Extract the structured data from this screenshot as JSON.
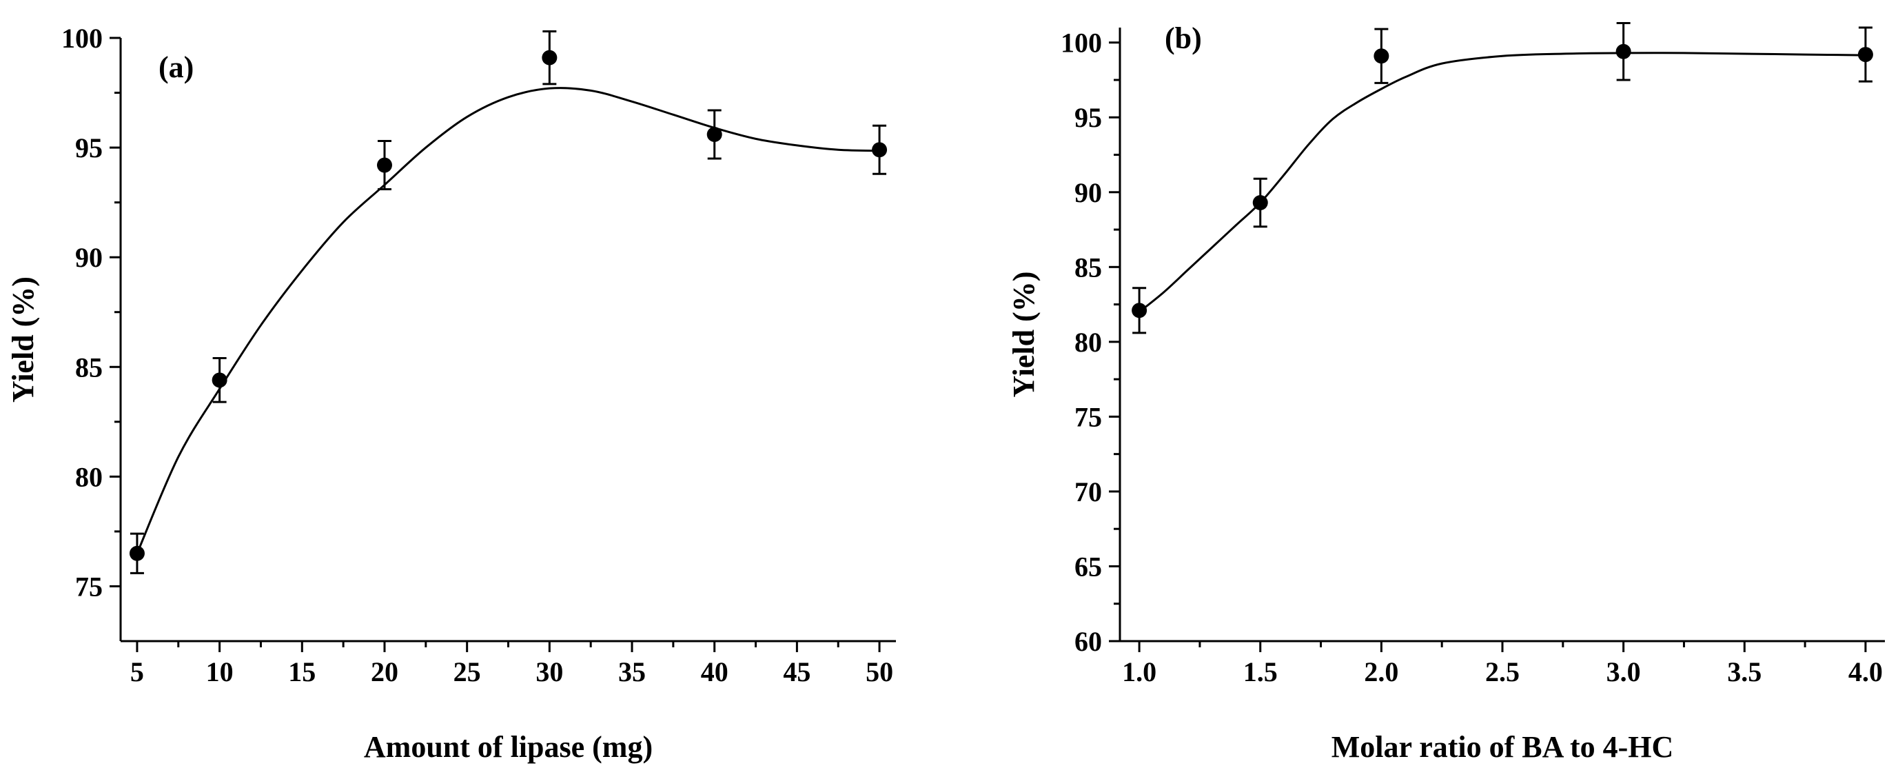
{
  "chart_data": [
    {
      "type": "scatter",
      "panel_label": "(a)",
      "xlabel": "Amount of lipase (mg)",
      "ylabel": "Yield (%)",
      "xlim": [
        4,
        51
      ],
      "ylim": [
        72.5,
        100
      ],
      "x_ticks": [
        5,
        10,
        15,
        20,
        25,
        30,
        35,
        40,
        45,
        50
      ],
      "x_tick_labels": [
        "5",
        "10",
        "15",
        "20",
        "25",
        "30",
        "35",
        "40",
        "45",
        "50"
      ],
      "y_ticks": [
        75,
        80,
        85,
        90,
        95,
        100
      ],
      "y_tick_labels": [
        "75",
        "80",
        "85",
        "90",
        "95",
        "100"
      ],
      "series": [
        {
          "name": "Yield",
          "x": [
            5,
            10,
            20,
            30,
            40,
            50
          ],
          "y": [
            76.5,
            84.4,
            94.2,
            99.1,
            95.6,
            94.9
          ],
          "err": [
            0.9,
            1.0,
            1.1,
            1.2,
            1.1,
            1.1
          ]
        }
      ],
      "fit_curve": {
        "x": [
          5,
          7.5,
          10,
          12.5,
          15,
          17.5,
          20,
          22.5,
          25,
          27.5,
          30,
          32.5,
          35,
          37.5,
          40,
          42.5,
          45,
          47.5,
          50
        ],
        "y": [
          76.5,
          80.9,
          84.0,
          86.9,
          89.4,
          91.6,
          93.3,
          95.0,
          96.4,
          97.3,
          97.7,
          97.6,
          97.1,
          96.5,
          95.9,
          95.4,
          95.1,
          94.9,
          94.85
        ]
      }
    },
    {
      "type": "scatter",
      "panel_label": "(b)",
      "xlabel": "Molar ratio of BA to 4-HC",
      "ylabel": "Yield (%)",
      "xlim": [
        0.92,
        4.08
      ],
      "ylim": [
        60,
        101
      ],
      "x_ticks": [
        1.0,
        1.5,
        2.0,
        2.5,
        3.0,
        3.5,
        4.0
      ],
      "x_tick_labels": [
        "1.0",
        "1.5",
        "2.0",
        "2.5",
        "3.0",
        "3.5",
        "4.0"
      ],
      "y_ticks": [
        60,
        65,
        70,
        75,
        80,
        85,
        90,
        95,
        100
      ],
      "y_tick_labels": [
        "60",
        "65",
        "70",
        "75",
        "80",
        "85",
        "90",
        "95",
        "100"
      ],
      "series": [
        {
          "name": "Yield",
          "x": [
            1.0,
            1.5,
            2.0,
            3.0,
            4.0
          ],
          "y": [
            82.1,
            89.3,
            99.1,
            99.4,
            99.2
          ],
          "err": [
            1.5,
            1.6,
            1.8,
            1.9,
            1.8
          ]
        }
      ],
      "fit_curve": {
        "x": [
          1.0,
          1.1,
          1.2,
          1.3,
          1.4,
          1.5,
          1.6,
          1.7,
          1.8,
          1.9,
          2.0,
          2.1,
          2.25,
          2.5,
          2.75,
          3.0,
          3.25,
          3.5,
          3.75,
          4.0
        ],
        "y": [
          82.0,
          83.3,
          84.8,
          86.3,
          87.8,
          89.3,
          91.2,
          93.2,
          94.9,
          96.0,
          96.9,
          97.7,
          98.6,
          99.1,
          99.25,
          99.3,
          99.3,
          99.25,
          99.2,
          99.15
        ]
      }
    }
  ]
}
